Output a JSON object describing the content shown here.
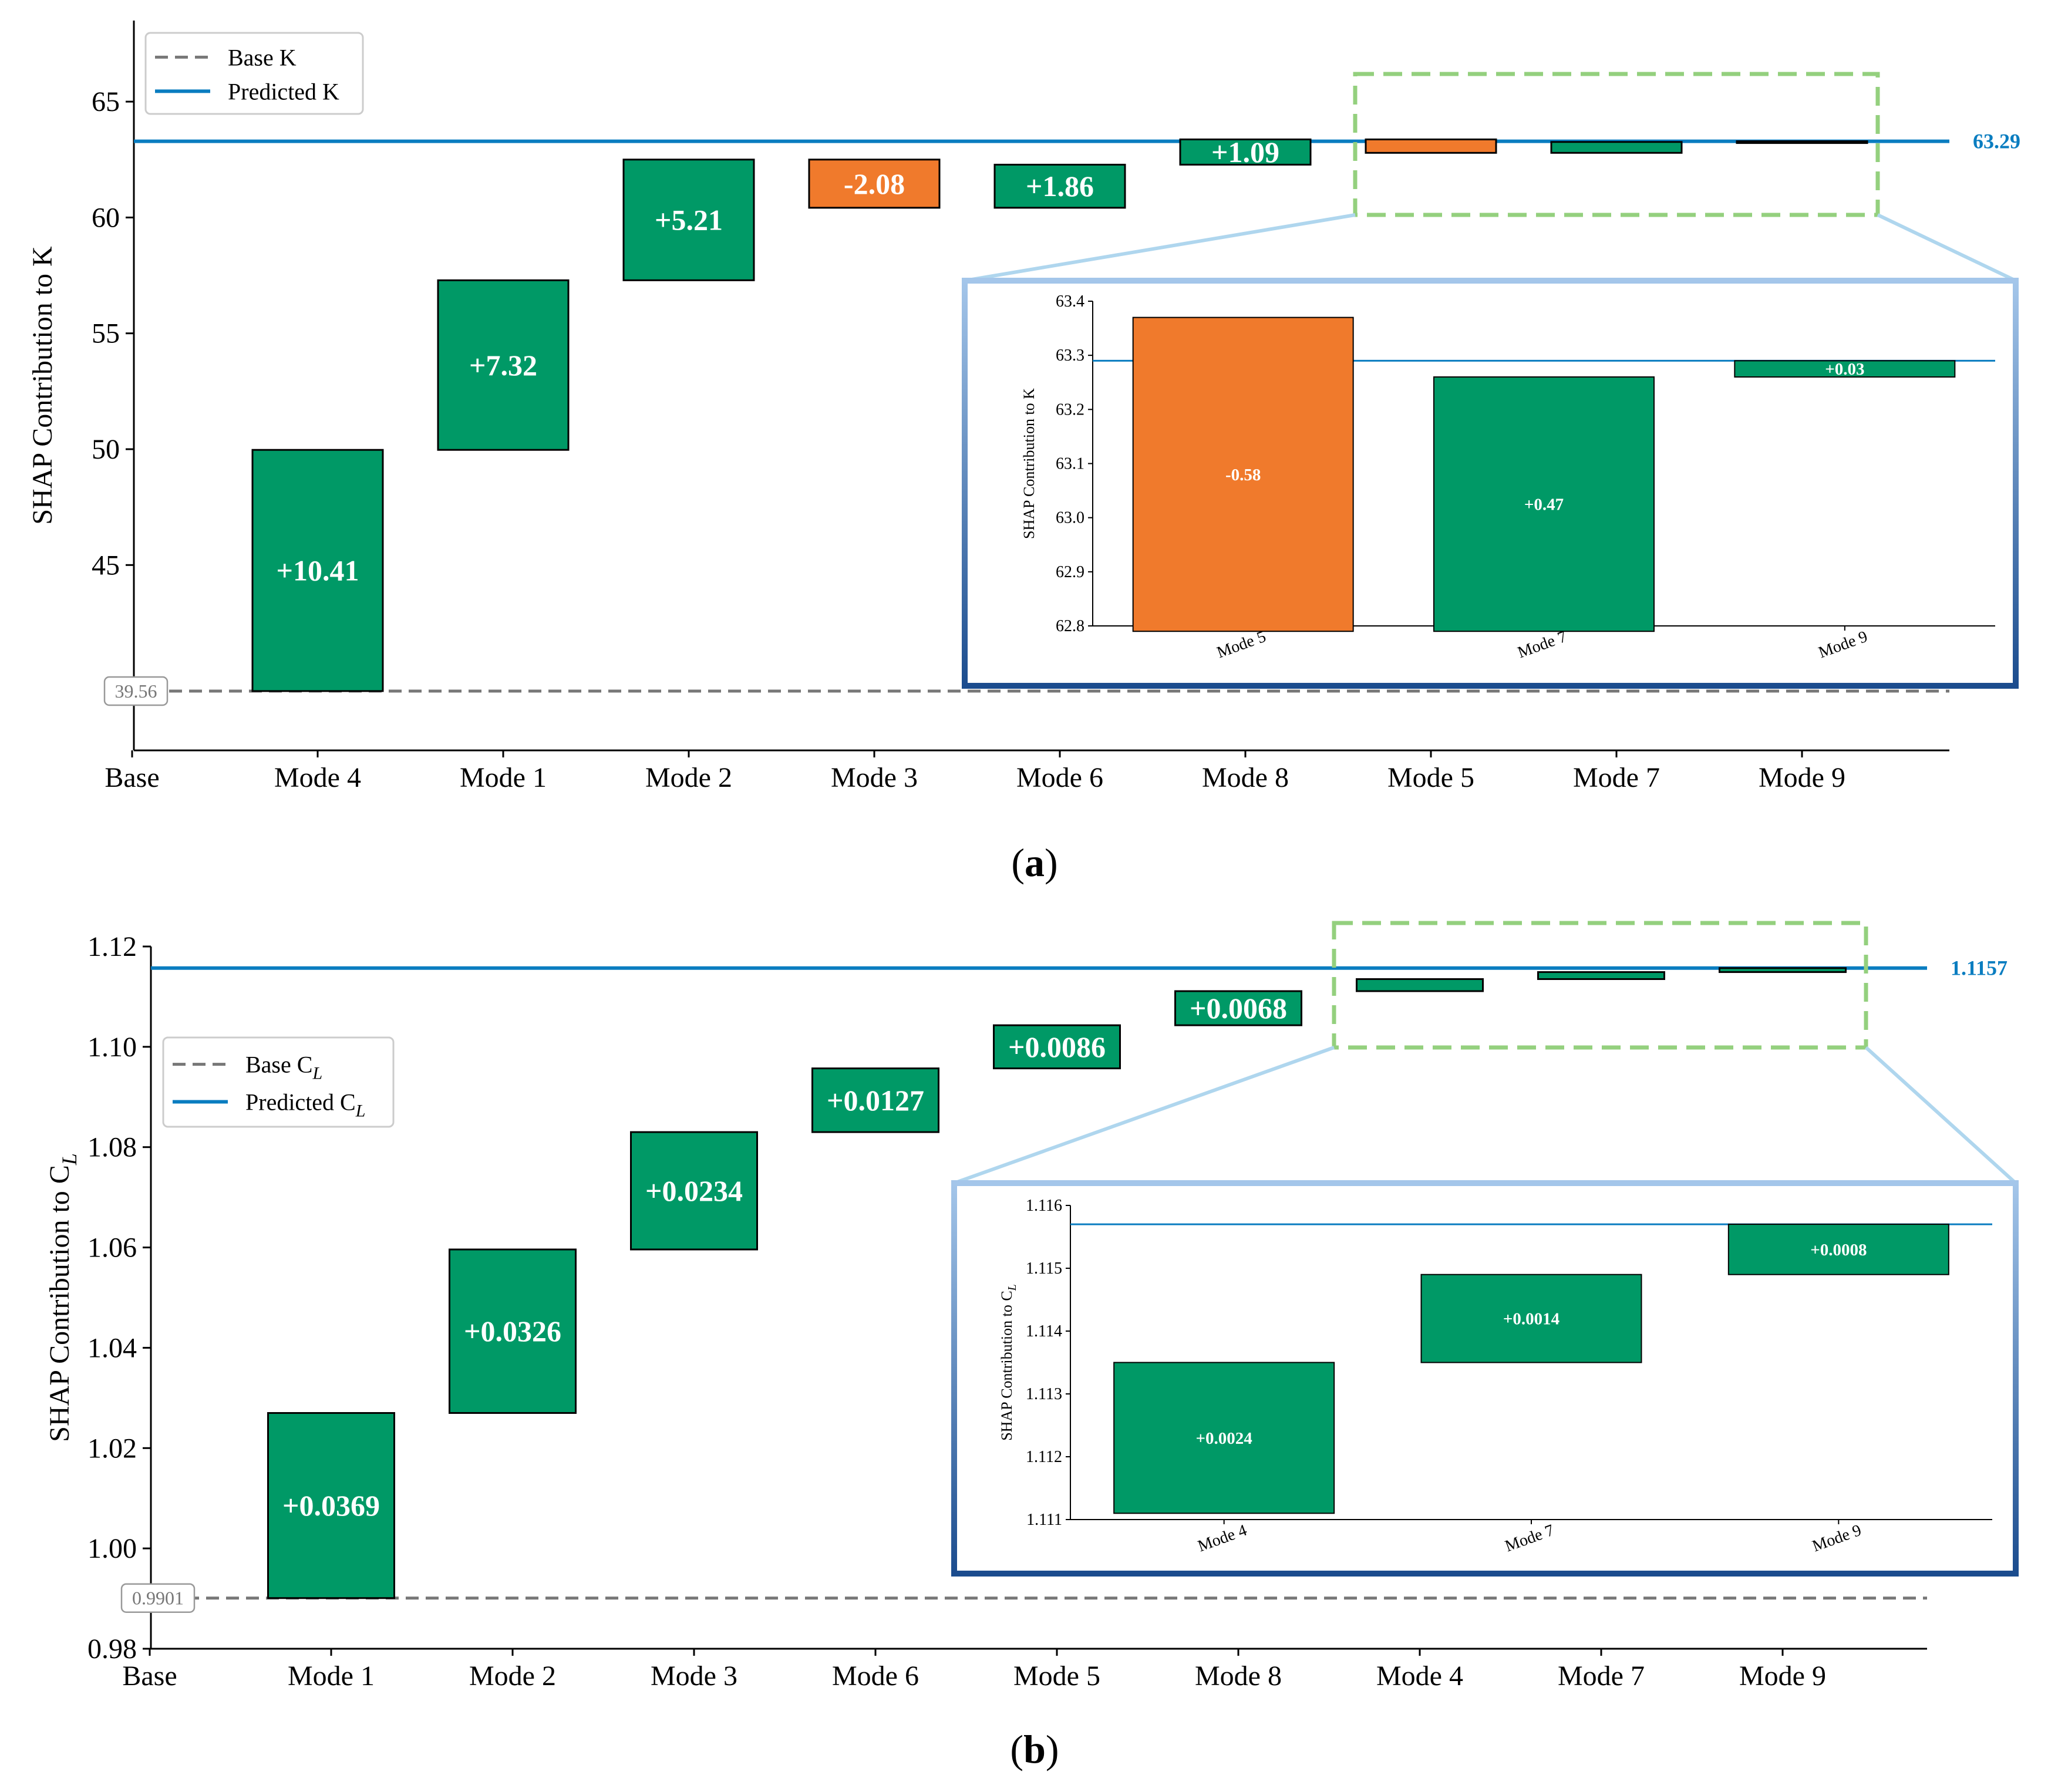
{
  "colors": {
    "positive": "#009966",
    "negative": "#F07A2C",
    "predicted_line": "#0A7DC0",
    "base_line": "#777777",
    "zoom_box": "#94D07E",
    "connector": "#AFD6EE",
    "inset_frame_top": "#A4C6EA",
    "inset_frame_bottom": "#1B4C8E"
  },
  "panels": {
    "a": {
      "label_open": "(",
      "label_letter": "a",
      "label_close": ")"
    },
    "b": {
      "label_open": "(",
      "label_letter": "b",
      "label_close": ")"
    }
  },
  "chart_data": [
    {
      "id": "a",
      "type": "waterfall",
      "ylabel": "SHAP Contribution to K",
      "ylim": [
        37,
        68.5
      ],
      "yticks": [
        45,
        50,
        55,
        60,
        65
      ],
      "categories": [
        "Base",
        "Mode 4",
        "Mode 1",
        "Mode 2",
        "Mode 3",
        "Mode 6",
        "Mode 8",
        "Mode 5",
        "Mode 7",
        "Mode 9"
      ],
      "base_value": 39.56,
      "base_label": "39.56",
      "predicted_value": 63.29,
      "predicted_label": "63.29",
      "legend": {
        "base": "Base K",
        "predicted": "Predicted K"
      },
      "bars": [
        {
          "category": "Mode 4",
          "start": 39.56,
          "end": 49.97,
          "label": "+10.41",
          "sign": "positive"
        },
        {
          "category": "Mode 1",
          "start": 49.97,
          "end": 57.29,
          "label": "+7.32",
          "sign": "positive"
        },
        {
          "category": "Mode 2",
          "start": 57.29,
          "end": 62.5,
          "label": "+5.21",
          "sign": "positive"
        },
        {
          "category": "Mode 3",
          "start": 62.5,
          "end": 60.42,
          "label": "-2.08",
          "sign": "negative"
        },
        {
          "category": "Mode 6",
          "start": 60.42,
          "end": 62.28,
          "label": "+1.86",
          "sign": "positive"
        },
        {
          "category": "Mode 8",
          "start": 62.28,
          "end": 63.37,
          "label": "+1.09",
          "sign": "positive"
        },
        {
          "category": "Mode 5",
          "start": 63.37,
          "end": 62.79,
          "label": "",
          "sign": "negative"
        },
        {
          "category": "Mode 7",
          "start": 62.79,
          "end": 63.26,
          "label": "",
          "sign": "positive"
        },
        {
          "category": "Mode 9",
          "start": 63.26,
          "end": 63.29,
          "label": "",
          "sign": "positive"
        }
      ],
      "inset": {
        "ylabel": "SHAP Contribution to K",
        "ylim": [
          62.8,
          63.4
        ],
        "yticks": [
          "62.8",
          "62.9",
          "63.0",
          "63.1",
          "63.2",
          "63.3",
          "63.4"
        ],
        "categories": [
          "Mode 5",
          "Mode 7",
          "Mode 9"
        ],
        "predicted_value": 63.29,
        "bars": [
          {
            "category": "Mode 5",
            "start": 63.37,
            "end": 62.79,
            "label": "-0.58",
            "sign": "negative"
          },
          {
            "category": "Mode 7",
            "start": 62.79,
            "end": 63.26,
            "label": "+0.47",
            "sign": "positive"
          },
          {
            "category": "Mode 9",
            "start": 63.26,
            "end": 63.29,
            "label": "+0.03",
            "sign": "positive"
          }
        ]
      }
    },
    {
      "id": "b",
      "type": "waterfall",
      "ylabel": "SHAP Contribution to C",
      "ylabel_sub": "L",
      "ylim": [
        0.98,
        1.12
      ],
      "yticks": [
        "0.98",
        "1.00",
        "1.02",
        "1.04",
        "1.06",
        "1.08",
        "1.10",
        "1.12"
      ],
      "categories": [
        "Base",
        "Mode 1",
        "Mode 2",
        "Mode 3",
        "Mode 6",
        "Mode 5",
        "Mode 8",
        "Mode 4",
        "Mode 7",
        "Mode 9"
      ],
      "base_value": 0.9901,
      "base_label": "0.9901",
      "predicted_value": 1.1157,
      "predicted_label": "1.1157",
      "legend": {
        "base": "Base C",
        "predicted": "Predicted C",
        "sub": "L"
      },
      "bars": [
        {
          "category": "Mode 1",
          "start": 0.9901,
          "end": 1.027,
          "label": "+0.0369",
          "sign": "positive"
        },
        {
          "category": "Mode 2",
          "start": 1.027,
          "end": 1.0596,
          "label": "+0.0326",
          "sign": "positive"
        },
        {
          "category": "Mode 3",
          "start": 1.0596,
          "end": 1.083,
          "label": "+0.0234",
          "sign": "positive"
        },
        {
          "category": "Mode 6",
          "start": 1.083,
          "end": 1.0957,
          "label": "+0.0127",
          "sign": "positive"
        },
        {
          "category": "Mode 5",
          "start": 1.0957,
          "end": 1.1043,
          "label": "+0.0086",
          "sign": "positive"
        },
        {
          "category": "Mode 8",
          "start": 1.1043,
          "end": 1.1111,
          "label": "+0.0068",
          "sign": "positive"
        },
        {
          "category": "Mode 4",
          "start": 1.1111,
          "end": 1.1135,
          "label": "",
          "sign": "positive"
        },
        {
          "category": "Mode 7",
          "start": 1.1135,
          "end": 1.1149,
          "label": "",
          "sign": "positive"
        },
        {
          "category": "Mode 9",
          "start": 1.1149,
          "end": 1.1157,
          "label": "",
          "sign": "positive"
        }
      ],
      "inset": {
        "ylabel": "SHAP Contribution to C",
        "ylabel_sub": "L",
        "ylim": [
          1.111,
          1.116
        ],
        "yticks": [
          "1.111",
          "1.112",
          "1.113",
          "1.114",
          "1.115",
          "1.116"
        ],
        "categories": [
          "Mode 4",
          "Mode 7",
          "Mode 9"
        ],
        "predicted_value": 1.1157,
        "bars": [
          {
            "category": "Mode 4",
            "start": 1.1111,
            "end": 1.1135,
            "label": "+0.0024",
            "sign": "positive"
          },
          {
            "category": "Mode 7",
            "start": 1.1135,
            "end": 1.1149,
            "label": "+0.0014",
            "sign": "positive"
          },
          {
            "category": "Mode 9",
            "start": 1.1149,
            "end": 1.1157,
            "label": "+0.0008",
            "sign": "positive"
          }
        ]
      }
    }
  ]
}
